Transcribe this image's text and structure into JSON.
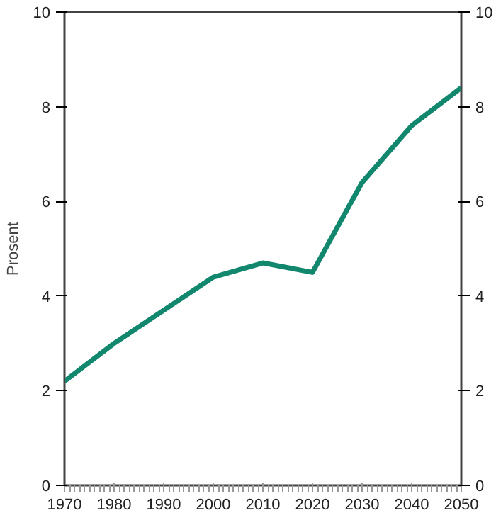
{
  "chart_data": {
    "type": "line",
    "ylabel": "Prosent",
    "x": [
      1970,
      1980,
      1990,
      2000,
      2010,
      2020,
      2030,
      2040,
      2050
    ],
    "series": [
      {
        "color": "#11876d",
        "values": [
          2.2,
          3.0,
          3.7,
          4.4,
          4.7,
          4.5,
          6.4,
          7.6,
          8.4
        ]
      }
    ],
    "xlim": [
      1970,
      2050
    ],
    "xticks": [
      1970,
      1980,
      1990,
      2000,
      2010,
      2020,
      2030,
      2040,
      2050
    ],
    "ylim": [
      0,
      10
    ],
    "yticks": [
      0,
      2,
      4,
      6,
      8,
      10
    ],
    "y2lim": [
      0,
      10
    ],
    "y2ticks": [
      0,
      2,
      4,
      6,
      8,
      10
    ],
    "grid": false
  }
}
